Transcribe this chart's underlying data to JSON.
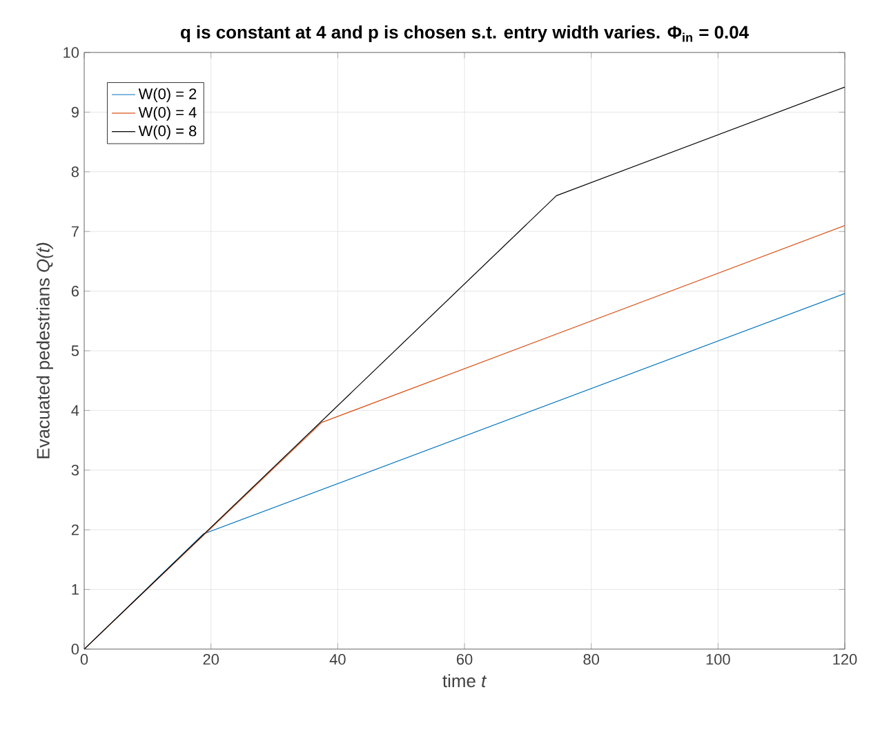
{
  "chart_data": {
    "type": "line",
    "title": "q is constant at 4 and p is chosen s.t. entry width varies. Φ$_{in}$ = 0.04",
    "xlabel": "time *t*",
    "ylabel": "Evacuated pedestrians  *Q(t)*",
    "series": [
      {
        "name": "W(0) = 2",
        "color": "#0072bd",
        "x": [
          0,
          18.8,
          120
        ],
        "values": [
          0,
          1.93,
          5.96
        ]
      },
      {
        "name": "W(0) = 4",
        "color": "#d95319",
        "x": [
          0,
          37.5,
          120
        ],
        "values": [
          0,
          3.8,
          7.1
        ]
      },
      {
        "name": "W(0) = 8",
        "color": "#000000",
        "x": [
          0,
          74.5,
          120
        ],
        "values": [
          0,
          7.6,
          9.42
        ]
      }
    ],
    "xlim": [
      0,
      120
    ],
    "ylim": [
      0,
      10
    ],
    "xticks": [
      0,
      20,
      40,
      60,
      80,
      100,
      120
    ],
    "yticks": [
      0,
      1,
      2,
      3,
      4,
      5,
      6,
      7,
      8,
      9,
      10
    ],
    "grid": true,
    "legend": "top left",
    "line_style": "solid",
    "marker": "none"
  }
}
